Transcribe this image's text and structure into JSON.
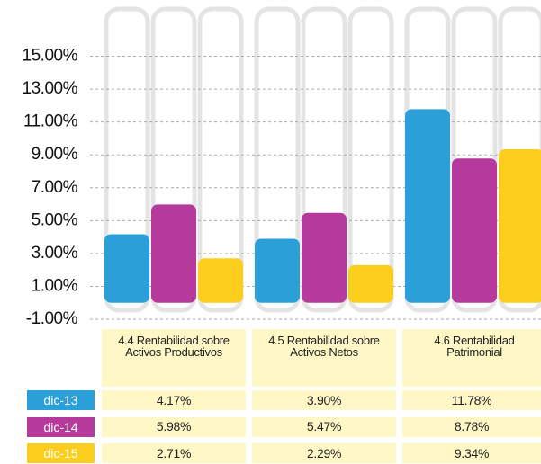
{
  "chart_data": {
    "type": "bar",
    "categories": [
      "4.4 Rentabilidad sobre Activos Productivos",
      "4.5 Rentabilidad sobre Activos Netos",
      "4.6 Rentabilidad Patrimonial"
    ],
    "series": [
      {
        "name": "dic-13",
        "color": "#2a9fd8",
        "values": [
          4.17,
          3.9,
          11.78
        ],
        "value_labels": [
          "4.17%",
          "3.90%",
          "11.78%"
        ]
      },
      {
        "name": "dic-14",
        "color": "#b53a9c",
        "values": [
          5.98,
          5.47,
          8.78
        ],
        "value_labels": [
          "5.98%",
          "5.47%",
          "8.78%"
        ]
      },
      {
        "name": "dic-15",
        "color": "#fbcd1c",
        "values": [
          2.71,
          2.29,
          9.34
        ],
        "value_labels": [
          "2.71%",
          "2.29%",
          "9.34%"
        ]
      }
    ],
    "ylim": [
      -1,
      17
    ],
    "yticks": [
      {
        "value": -1,
        "label": "-1.00%"
      },
      {
        "value": 1,
        "label": "1.00%"
      },
      {
        "value": 3,
        "label": "3.00%"
      },
      {
        "value": 5,
        "label": "5.00%"
      },
      {
        "value": 7,
        "label": "7.00%"
      },
      {
        "value": 9,
        "label": "9.00%"
      },
      {
        "value": 11,
        "label": "11.00%"
      },
      {
        "value": 13,
        "label": "13.00%"
      },
      {
        "value": 15,
        "label": "15.00%"
      }
    ],
    "grid": true
  }
}
